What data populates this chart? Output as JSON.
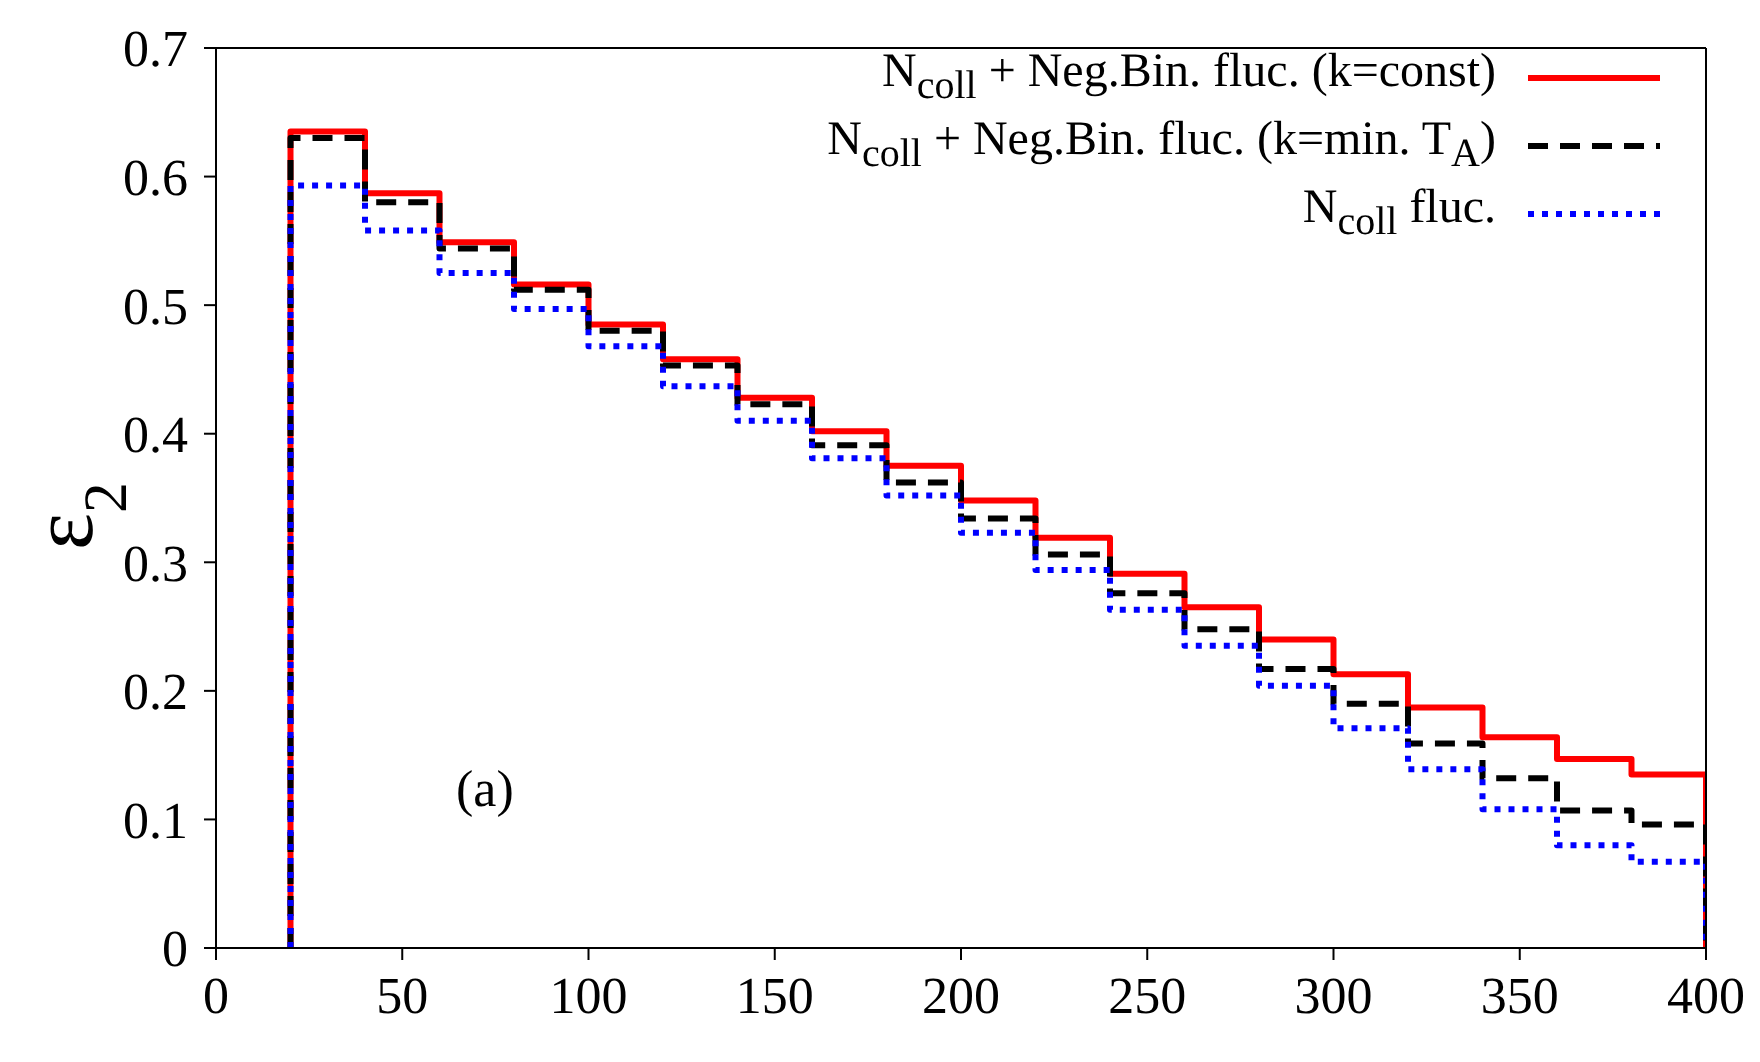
{
  "chart_data": {
    "type": "histogram",
    "ylabel": "ε$_{2}$",
    "bins": [
      20,
      40,
      60,
      80,
      100,
      120,
      140,
      160,
      180,
      200,
      220,
      240,
      260,
      280,
      300,
      320,
      340,
      360,
      380,
      400
    ],
    "xlim": [
      0,
      400
    ],
    "xticks": [
      0,
      50,
      100,
      150,
      200,
      250,
      300,
      350,
      400
    ],
    "ylim": [
      0,
      0.7
    ],
    "yticks": [
      0,
      0.1,
      0.2,
      0.3,
      0.4,
      0.5,
      0.6,
      0.7
    ],
    "grid": false,
    "legend": "top right",
    "annotations": [
      "(a)"
    ],
    "series": [
      {
        "name": "N$_{coll}$ + Neg.Bin. fluc. (k=const)",
        "color": "#ff0000",
        "line_style": "solid",
        "values": [
          0.635,
          0.587,
          0.549,
          0.516,
          0.485,
          0.458,
          0.428,
          0.402,
          0.375,
          0.348,
          0.319,
          0.291,
          0.265,
          0.24,
          0.213,
          0.187,
          0.164,
          0.147,
          0.135
        ]
      },
      {
        "name": "N$_{coll}$ + Neg.Bin. fluc. (k=min. T$_{A}$)",
        "color": "#000000",
        "line_style": "dashed",
        "values": [
          0.63,
          0.58,
          0.544,
          0.512,
          0.48,
          0.453,
          0.423,
          0.391,
          0.362,
          0.334,
          0.306,
          0.276,
          0.248,
          0.217,
          0.19,
          0.159,
          0.132,
          0.107,
          0.096
        ]
      },
      {
        "name": "N$_{coll}$ fluc.",
        "color": "#0000ff",
        "line_style": "dotted",
        "values": [
          0.593,
          0.558,
          0.525,
          0.497,
          0.468,
          0.437,
          0.41,
          0.381,
          0.352,
          0.323,
          0.294,
          0.263,
          0.235,
          0.204,
          0.171,
          0.139,
          0.108,
          0.08,
          0.067
        ]
      }
    ]
  }
}
